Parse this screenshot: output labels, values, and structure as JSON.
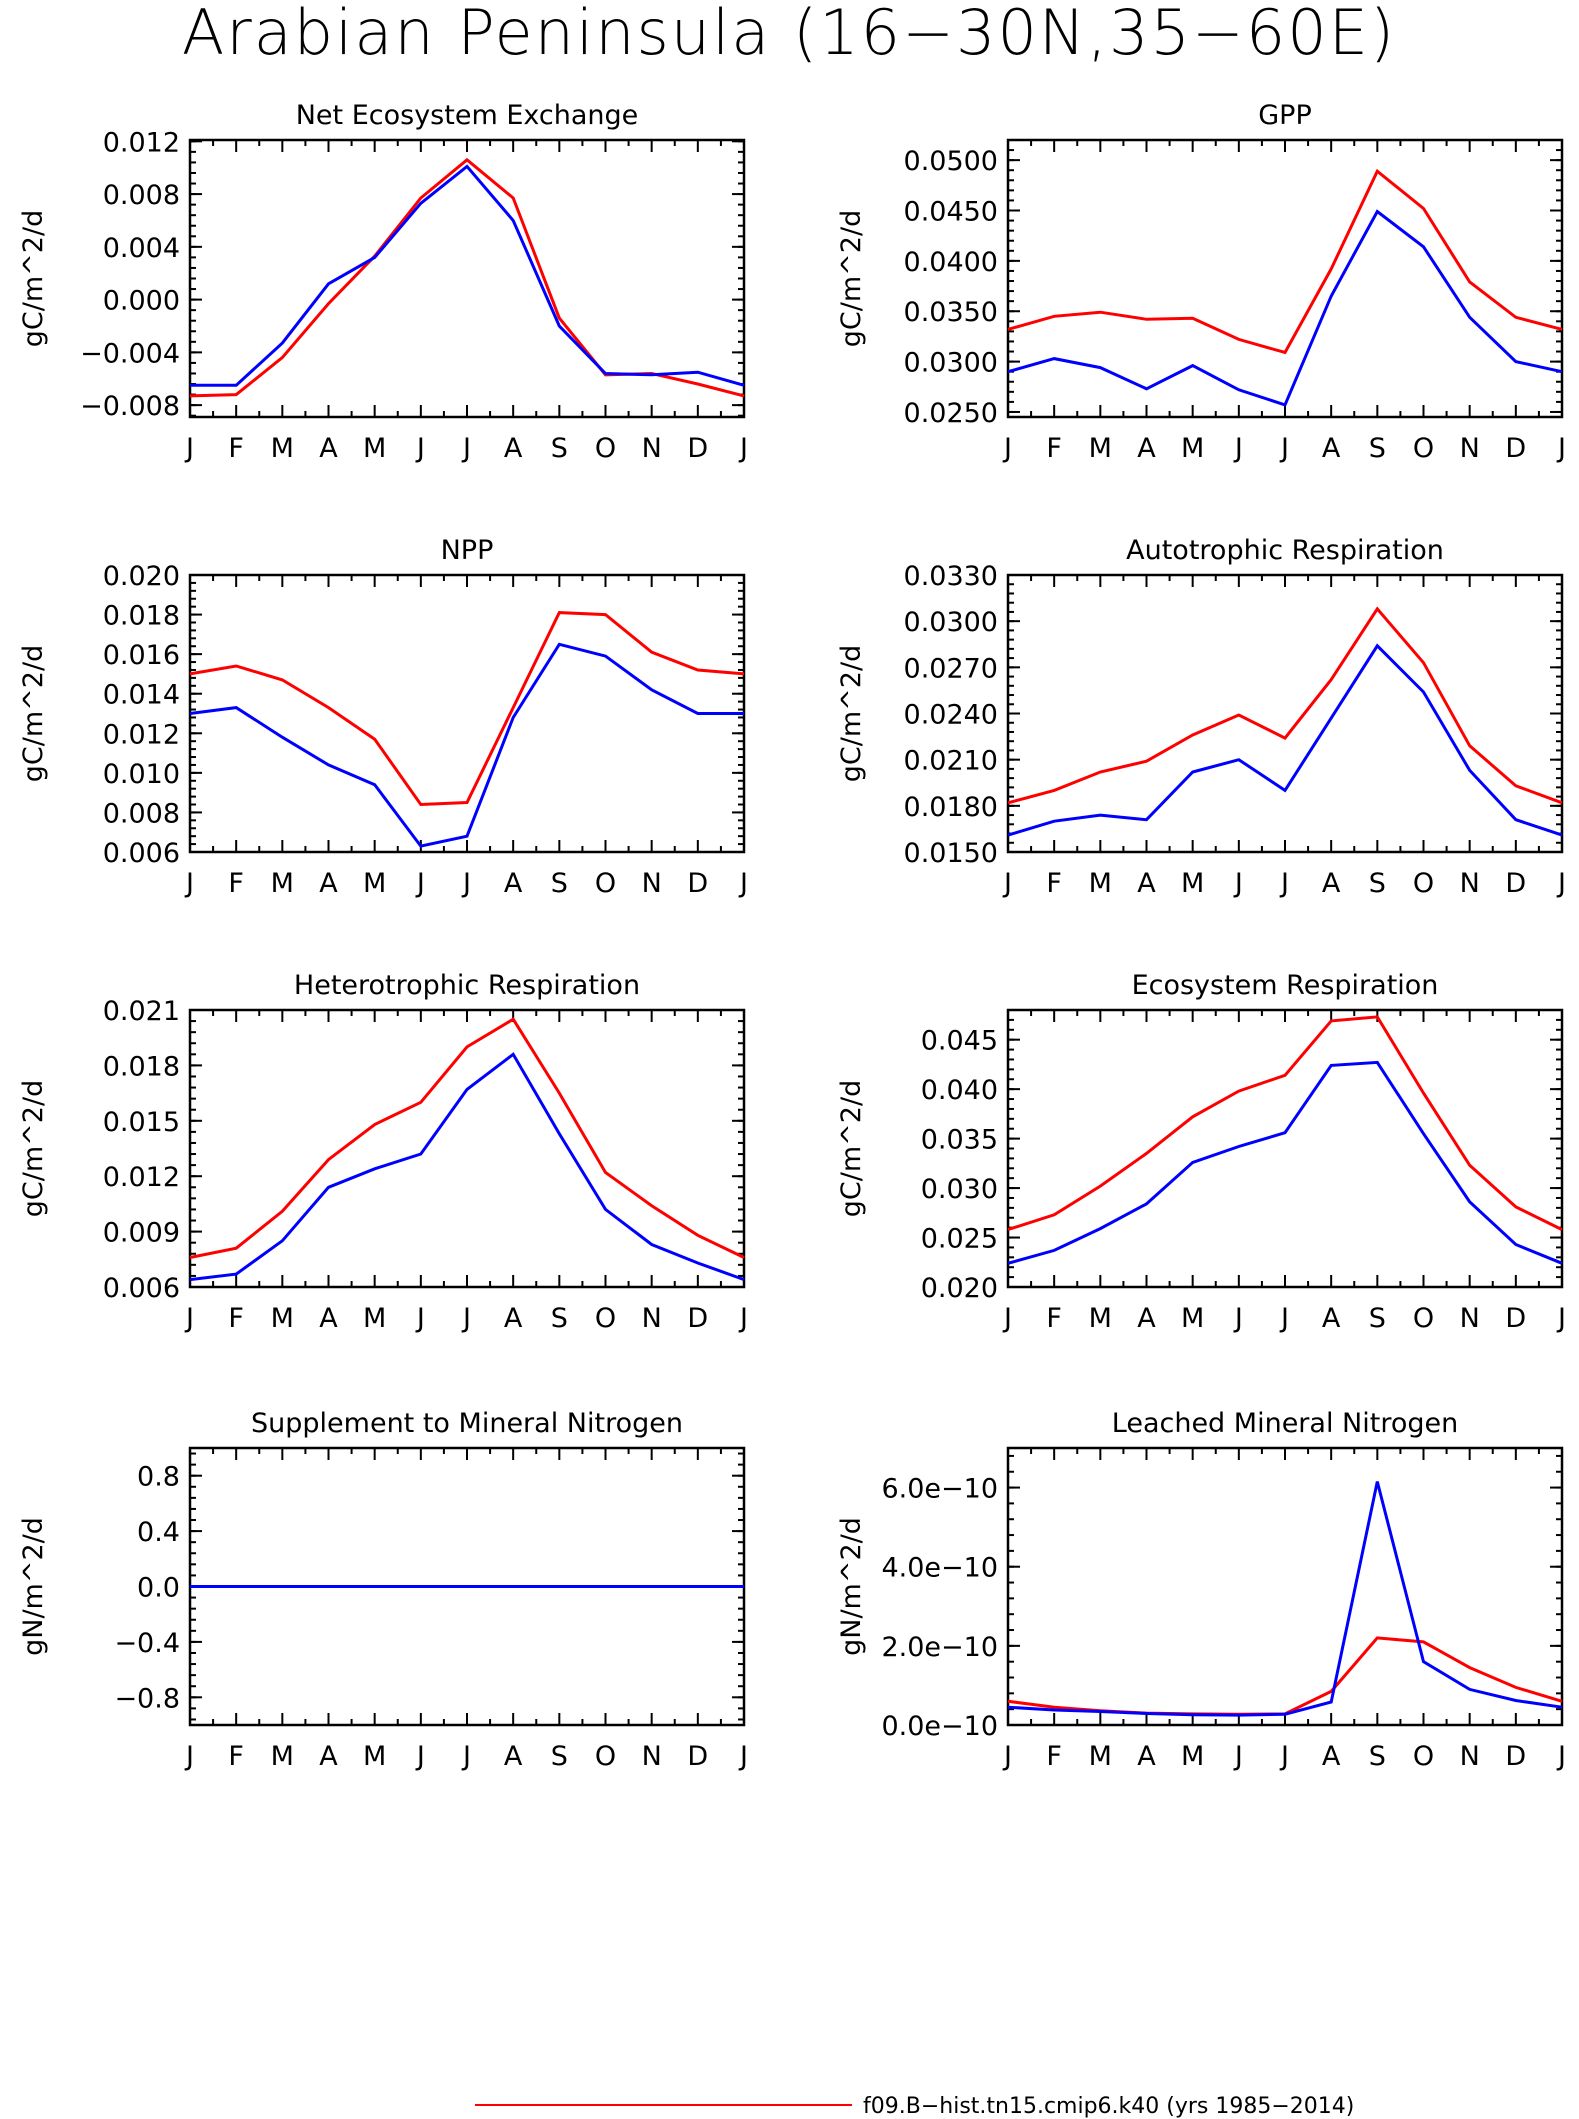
{
  "page_title": "Arabian Peninsula (16−30N,35−60E)",
  "colors": {
    "series_red": "#ff0000",
    "series_blue": "#0000ff",
    "axes": "#000000",
    "background": "#ffffff"
  },
  "legend": {
    "text": "f09.B−hist.tn15.cmip6.k40 (yrs 1985−2014)",
    "color": "#ff0000"
  },
  "chart_data": [
    {
      "type": "line",
      "title": "Net Ecosystem Exchange",
      "ylabel": "gC/m^2/d",
      "xlabel": "",
      "categories": [
        "J",
        "F",
        "M",
        "A",
        "M",
        "J",
        "J",
        "A",
        "S",
        "O",
        "N",
        "D",
        "J"
      ],
      "ylim": [
        -0.0089,
        0.0121
      ],
      "yticks": [
        "0.012",
        "0.008",
        "0.004",
        "0.000",
        "−0.004",
        "−0.008"
      ],
      "ytick_values": [
        0.012,
        0.008,
        0.004,
        0.0,
        -0.004,
        -0.008
      ],
      "grid": false,
      "series": [
        {
          "color": "#ff0000",
          "values": [
            -0.0073,
            -0.0072,
            -0.0044,
            -0.0003,
            0.0033,
            0.0077,
            0.0106,
            0.0077,
            -0.0014,
            -0.0057,
            -0.0056,
            -0.0064,
            -0.0073
          ]
        },
        {
          "color": "#0000ff",
          "values": [
            -0.0065,
            -0.0065,
            -0.0033,
            0.0012,
            0.0032,
            0.0073,
            0.0101,
            0.006,
            -0.002,
            -0.0056,
            -0.0057,
            -0.0055,
            -0.0065
          ]
        }
      ]
    },
    {
      "type": "line",
      "title": "GPP",
      "ylabel": "gC/m^2/d",
      "xlabel": "",
      "categories": [
        "J",
        "F",
        "M",
        "A",
        "M",
        "J",
        "J",
        "A",
        "S",
        "O",
        "N",
        "D",
        "J"
      ],
      "ylim": [
        0.0245,
        0.052
      ],
      "yticks": [
        "0.0500",
        "0.0450",
        "0.0400",
        "0.0350",
        "0.0300",
        "0.0250"
      ],
      "ytick_values": [
        0.05,
        0.045,
        0.04,
        0.035,
        0.03,
        0.025
      ],
      "grid": false,
      "series": [
        {
          "color": "#ff0000",
          "values": [
            0.0332,
            0.0345,
            0.0349,
            0.0342,
            0.0343,
            0.0322,
            0.0309,
            0.0392,
            0.0489,
            0.0452,
            0.0379,
            0.0344,
            0.0332
          ]
        },
        {
          "color": "#0000ff",
          "values": [
            0.029,
            0.0303,
            0.0294,
            0.0273,
            0.0296,
            0.0272,
            0.0257,
            0.0365,
            0.0449,
            0.0414,
            0.0344,
            0.03,
            0.029
          ]
        }
      ]
    },
    {
      "type": "line",
      "title": "NPP",
      "ylabel": "gC/m^2/d",
      "xlabel": "",
      "categories": [
        "J",
        "F",
        "M",
        "A",
        "M",
        "J",
        "J",
        "A",
        "S",
        "O",
        "N",
        "D",
        "J"
      ],
      "ylim": [
        0.006,
        0.02
      ],
      "yticks": [
        "0.020",
        "0.018",
        "0.016",
        "0.014",
        "0.012",
        "0.010",
        "0.008",
        "0.006"
      ],
      "ytick_values": [
        0.02,
        0.018,
        0.016,
        0.014,
        0.012,
        0.01,
        0.008,
        0.006
      ],
      "grid": false,
      "series": [
        {
          "color": "#ff0000",
          "values": [
            0.015,
            0.0154,
            0.0147,
            0.0133,
            0.0117,
            0.0084,
            0.0085,
            0.0133,
            0.0181,
            0.018,
            0.0161,
            0.0152,
            0.015
          ]
        },
        {
          "color": "#0000ff",
          "values": [
            0.013,
            0.0133,
            0.0118,
            0.0104,
            0.0094,
            0.0063,
            0.0068,
            0.0128,
            0.0165,
            0.0159,
            0.0142,
            0.013,
            0.013
          ]
        }
      ]
    },
    {
      "type": "line",
      "title": "Autotrophic Respiration",
      "ylabel": "gC/m^2/d",
      "xlabel": "",
      "categories": [
        "J",
        "F",
        "M",
        "A",
        "M",
        "J",
        "J",
        "A",
        "S",
        "O",
        "N",
        "D",
        "J"
      ],
      "ylim": [
        0.015,
        0.033
      ],
      "yticks": [
        "0.0330",
        "0.0300",
        "0.0270",
        "0.0240",
        "0.0210",
        "0.0180",
        "0.0150"
      ],
      "ytick_values": [
        0.033,
        0.03,
        0.027,
        0.024,
        0.021,
        0.018,
        0.015
      ],
      "grid": false,
      "series": [
        {
          "color": "#ff0000",
          "values": [
            0.0182,
            0.019,
            0.0202,
            0.0209,
            0.0226,
            0.0239,
            0.0224,
            0.0262,
            0.0308,
            0.0273,
            0.0219,
            0.0193,
            0.0182
          ]
        },
        {
          "color": "#0000ff",
          "values": [
            0.0161,
            0.017,
            0.0174,
            0.0171,
            0.0202,
            0.021,
            0.019,
            0.0237,
            0.0284,
            0.0254,
            0.0203,
            0.0171,
            0.0161
          ]
        }
      ]
    },
    {
      "type": "line",
      "title": "Heterotrophic Respiration",
      "ylabel": "gC/m^2/d",
      "xlabel": "",
      "categories": [
        "J",
        "F",
        "M",
        "A",
        "M",
        "J",
        "J",
        "A",
        "S",
        "O",
        "N",
        "D",
        "J"
      ],
      "ylim": [
        0.006,
        0.021
      ],
      "yticks": [
        "0.021",
        "0.018",
        "0.015",
        "0.012",
        "0.009",
        "0.006"
      ],
      "ytick_values": [
        0.021,
        0.018,
        0.015,
        0.012,
        0.009,
        0.006
      ],
      "grid": false,
      "series": [
        {
          "color": "#ff0000",
          "values": [
            0.0076,
            0.0081,
            0.0101,
            0.0129,
            0.0148,
            0.016,
            0.019,
            0.0205,
            0.0165,
            0.0122,
            0.0104,
            0.0088,
            0.0076
          ]
        },
        {
          "color": "#0000ff",
          "values": [
            0.0064,
            0.0067,
            0.0085,
            0.0114,
            0.0124,
            0.0132,
            0.0167,
            0.0186,
            0.0143,
            0.0102,
            0.0083,
            0.0073,
            0.0064
          ]
        }
      ]
    },
    {
      "type": "line",
      "title": "Ecosystem Respiration",
      "ylabel": "gC/m^2/d",
      "xlabel": "",
      "categories": [
        "J",
        "F",
        "M",
        "A",
        "M",
        "J",
        "J",
        "A",
        "S",
        "O",
        "N",
        "D",
        "J"
      ],
      "ylim": [
        0.02,
        0.048
      ],
      "yticks": [
        "0.045",
        "0.040",
        "0.035",
        "0.030",
        "0.025",
        "0.020"
      ],
      "ytick_values": [
        0.045,
        0.04,
        0.035,
        0.03,
        0.025,
        0.02
      ],
      "grid": false,
      "series": [
        {
          "color": "#ff0000",
          "values": [
            0.0258,
            0.0273,
            0.0302,
            0.0335,
            0.0372,
            0.0398,
            0.0414,
            0.0469,
            0.0473,
            0.0396,
            0.0323,
            0.0281,
            0.0258
          ]
        },
        {
          "color": "#0000ff",
          "values": [
            0.0224,
            0.0237,
            0.0259,
            0.0284,
            0.0326,
            0.0342,
            0.0356,
            0.0424,
            0.0427,
            0.0355,
            0.0286,
            0.0243,
            0.0224
          ]
        }
      ]
    },
    {
      "type": "line",
      "title": "Supplement to Mineral Nitrogen",
      "ylabel": "gN/m^2/d",
      "xlabel": "",
      "categories": [
        "J",
        "F",
        "M",
        "A",
        "M",
        "J",
        "J",
        "A",
        "S",
        "O",
        "N",
        "D",
        "J"
      ],
      "ylim": [
        -1.0,
        1.0
      ],
      "yticks": [
        "0.8",
        "0.4",
        "0.0",
        "−0.4",
        "−0.8"
      ],
      "ytick_values": [
        0.8,
        0.4,
        0.0,
        -0.4,
        -0.8
      ],
      "grid": false,
      "series": [
        {
          "color": "#ff0000",
          "values": [
            0,
            0,
            0,
            0,
            0,
            0,
            0,
            0,
            0,
            0,
            0,
            0,
            0
          ]
        },
        {
          "color": "#0000ff",
          "values": [
            0,
            0,
            0,
            0,
            0,
            0,
            0,
            0,
            0,
            0,
            0,
            0,
            0
          ]
        }
      ]
    },
    {
      "type": "line",
      "title": "Leached Mineral Nitrogen",
      "ylabel": "gN/m^2/d",
      "xlabel": "",
      "categories": [
        "J",
        "F",
        "M",
        "A",
        "M",
        "J",
        "J",
        "A",
        "S",
        "O",
        "N",
        "D",
        "J"
      ],
      "ylim": [
        0.0,
        7e-10
      ],
      "yticks": [
        "6.0e−10",
        "4.0e−10",
        "2.0e−10",
        "0.0e−10"
      ],
      "ytick_values": [
        6e-10,
        4e-10,
        2e-10,
        0.0
      ],
      "grid": false,
      "series": [
        {
          "color": "#ff0000",
          "values": [
            6e-11,
            4.5e-11,
            3.6e-11,
            3e-11,
            2.8e-11,
            2.7e-11,
            2.8e-11,
            8.5e-11,
            2.2e-10,
            2.1e-10,
            1.45e-10,
            9.5e-11,
            6e-11
          ]
        },
        {
          "color": "#0000ff",
          "values": [
            4.5e-11,
            3.8e-11,
            3.4e-11,
            2.9e-11,
            2.6e-11,
            2.5e-11,
            2.7e-11,
            5.8e-11,
            6.15e-10,
            1.6e-10,
            9e-11,
            6.2e-11,
            4.5e-11
          ]
        }
      ]
    }
  ]
}
